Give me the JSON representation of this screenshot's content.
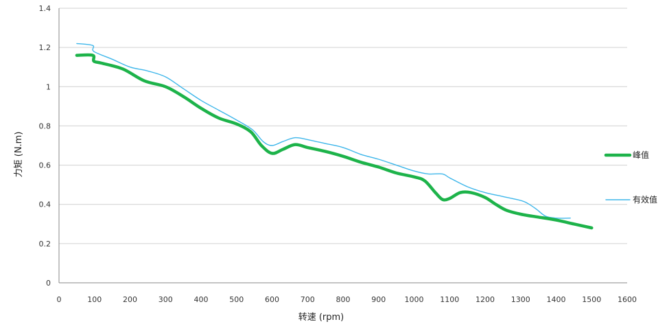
{
  "chart_data": {
    "type": "line",
    "title": "",
    "xlabel": "转速  (rpm)",
    "ylabel": "力矩 (N.m)",
    "xlim": [
      0,
      1600
    ],
    "ylim": [
      0,
      1.4
    ],
    "xticks": [
      0,
      100,
      200,
      300,
      400,
      500,
      600,
      700,
      800,
      900,
      1000,
      1100,
      1200,
      1300,
      1400,
      1500,
      1600
    ],
    "xtick_labels": [
      "0",
      "100",
      "200",
      "300",
      "400",
      "500",
      "600",
      "700",
      "800",
      "900",
      "1000",
      "1100",
      "1200",
      "1300",
      "1400",
      "1500",
      "1600"
    ],
    "yticks": [
      0,
      0.2,
      0.4,
      0.6,
      0.8,
      1.0,
      1.2,
      1.4
    ],
    "ytick_labels": [
      "0",
      "0.2",
      "0.4",
      "0.6",
      "0.8",
      "1",
      "1.2",
      "1.4"
    ],
    "grid": "horizontal",
    "legend": "right",
    "series": [
      {
        "name": "峰值",
        "color": "#1db34a",
        "x": [
          50,
          95,
          98,
          120,
          180,
          240,
          300,
          350,
          400,
          450,
          500,
          540,
          570,
          600,
          630,
          665,
          700,
          750,
          800,
          850,
          900,
          950,
          1000,
          1030,
          1060,
          1080,
          1100,
          1130,
          1160,
          1200,
          1230,
          1260,
          1300,
          1350,
          1400,
          1450,
          1500
        ],
        "values": [
          1.16,
          1.16,
          1.13,
          1.12,
          1.09,
          1.03,
          1.0,
          0.95,
          0.89,
          0.84,
          0.81,
          0.77,
          0.7,
          0.66,
          0.68,
          0.705,
          0.69,
          0.67,
          0.645,
          0.615,
          0.59,
          0.56,
          0.54,
          0.52,
          0.46,
          0.425,
          0.43,
          0.46,
          0.46,
          0.435,
          0.4,
          0.37,
          0.35,
          0.335,
          0.32,
          0.3,
          0.28
        ]
      },
      {
        "name": "有效值",
        "color": "#3db6ea",
        "x": [
          50,
          95,
          98,
          150,
          200,
          250,
          300,
          350,
          400,
          450,
          500,
          545,
          575,
          600,
          630,
          665,
          700,
          750,
          800,
          850,
          900,
          950,
          1000,
          1040,
          1080,
          1100,
          1150,
          1200,
          1250,
          1300,
          1320,
          1345,
          1370,
          1400,
          1440
        ],
        "values": [
          1.22,
          1.21,
          1.18,
          1.14,
          1.1,
          1.08,
          1.05,
          0.99,
          0.93,
          0.88,
          0.83,
          0.78,
          0.72,
          0.7,
          0.72,
          0.74,
          0.73,
          0.71,
          0.69,
          0.655,
          0.63,
          0.6,
          0.57,
          0.555,
          0.555,
          0.535,
          0.49,
          0.46,
          0.44,
          0.42,
          0.405,
          0.375,
          0.34,
          0.33,
          0.33
        ]
      }
    ]
  }
}
